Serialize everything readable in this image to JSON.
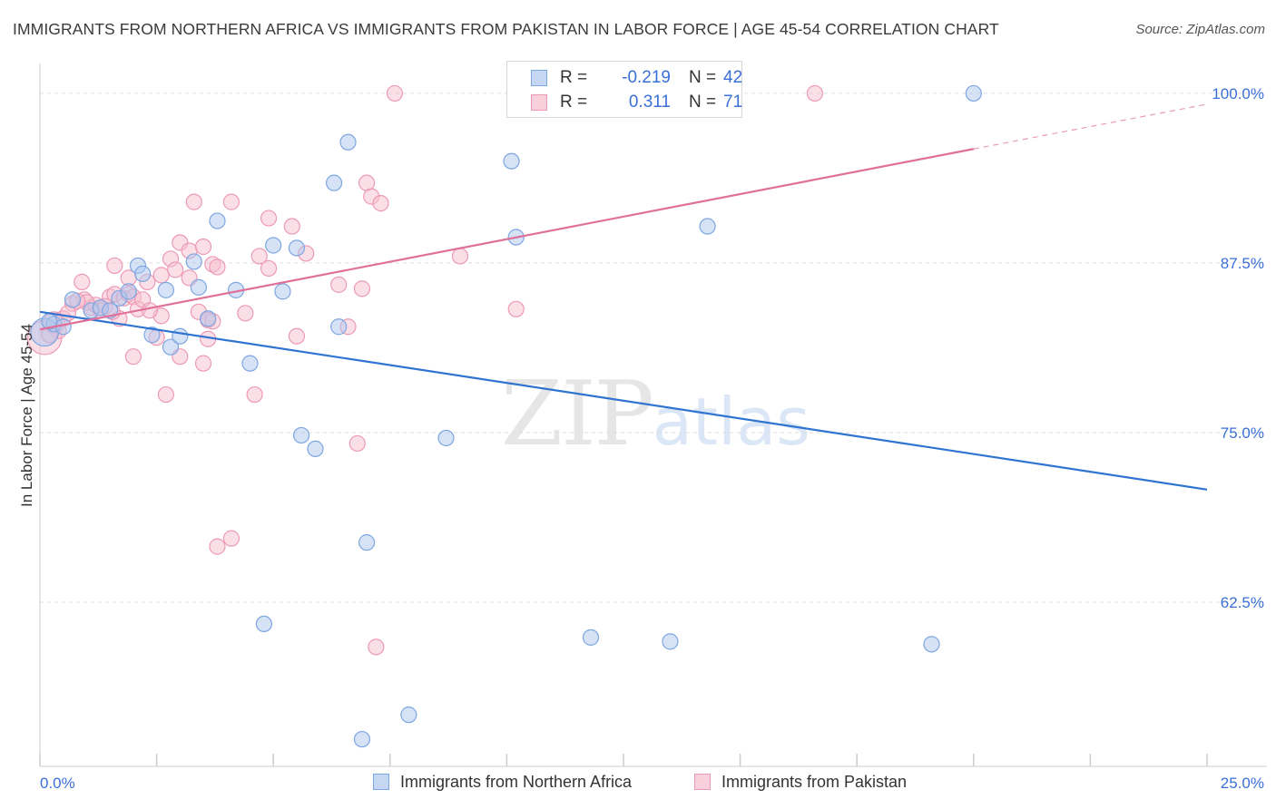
{
  "header": {
    "title": "IMMIGRANTS FROM NORTHERN AFRICA VS IMMIGRANTS FROM PAKISTAN IN LABOR FORCE | AGE 45-54 CORRELATION CHART",
    "source": "Source: ZipAtlas.com"
  },
  "watermark": {
    "zip": "ZIP",
    "atlas": "atlas"
  },
  "legend": {
    "r_label": "R =",
    "n_label": "N =",
    "series1": {
      "r": "-0.219",
      "n": "42"
    },
    "series2": {
      "r": "0.311",
      "n": "71"
    }
  },
  "colors": {
    "blue_fill": "#aec8f0",
    "blue_stroke": "#7ea6e0",
    "blue_line": "#2f74d0",
    "pink_fill": "#f6bfd0",
    "pink_stroke": "#ec9ab5",
    "pink_line": "#e0709a",
    "tick_text": "#3a6fd8",
    "grid": "#dddddd"
  },
  "chart_data": {
    "type": "scatter",
    "title": "IMMIGRANTS FROM NORTHERN AFRICA VS IMMIGRANTS FROM PAKISTAN IN LABOR FORCE | AGE 45-54 CORRELATION CHART",
    "xlabel": "",
    "ylabel": "In Labor Force | Age 45-54",
    "xlim": [
      0,
      25
    ],
    "ylim": [
      50.4,
      102.2
    ],
    "x_tick_labels": [
      "0.0%",
      "25.0%"
    ],
    "y_ticks": [
      62.5,
      75.0,
      87.5,
      100.0
    ],
    "y_tick_labels": [
      "62.5%",
      "75.0%",
      "87.5%",
      "100.0%"
    ],
    "grid": true,
    "legend_position": "top-center",
    "series": [
      {
        "name": "Immigrants from Northern Africa",
        "color": "blue",
        "r": -0.219,
        "n": 42,
        "trend": {
          "x": [
            0,
            25
          ],
          "y": [
            83.9,
            70.8
          ]
        },
        "points": [
          {
            "x": 0.1,
            "y": 82.4,
            "s": 1.8
          },
          {
            "x": 0.3,
            "y": 83.0,
            "s": 1
          },
          {
            "x": 0.5,
            "y": 82.8,
            "s": 1
          },
          {
            "x": 0.7,
            "y": 84.8,
            "s": 1
          },
          {
            "x": 1.1,
            "y": 84.0,
            "s": 1
          },
          {
            "x": 1.3,
            "y": 84.2,
            "s": 1
          },
          {
            "x": 1.5,
            "y": 84.0,
            "s": 1
          },
          {
            "x": 1.7,
            "y": 84.9,
            "s": 1
          },
          {
            "x": 1.9,
            "y": 85.4,
            "s": 1
          },
          {
            "x": 2.1,
            "y": 87.3,
            "s": 1
          },
          {
            "x": 2.2,
            "y": 86.7,
            "s": 1
          },
          {
            "x": 2.4,
            "y": 82.2,
            "s": 1
          },
          {
            "x": 2.7,
            "y": 85.5,
            "s": 1
          },
          {
            "x": 2.8,
            "y": 81.3,
            "s": 1
          },
          {
            "x": 3.0,
            "y": 82.1,
            "s": 1
          },
          {
            "x": 3.3,
            "y": 87.6,
            "s": 1
          },
          {
            "x": 3.4,
            "y": 85.7,
            "s": 1
          },
          {
            "x": 3.6,
            "y": 83.4,
            "s": 1
          },
          {
            "x": 3.8,
            "y": 90.6,
            "s": 1
          },
          {
            "x": 4.2,
            "y": 85.5,
            "s": 1
          },
          {
            "x": 4.5,
            "y": 80.1,
            "s": 1
          },
          {
            "x": 4.8,
            "y": 60.9,
            "s": 1
          },
          {
            "x": 5.0,
            "y": 88.8,
            "s": 1
          },
          {
            "x": 5.2,
            "y": 85.4,
            "s": 1
          },
          {
            "x": 5.5,
            "y": 88.6,
            "s": 1
          },
          {
            "x": 5.6,
            "y": 74.8,
            "s": 1
          },
          {
            "x": 5.9,
            "y": 73.8,
            "s": 1
          },
          {
            "x": 6.3,
            "y": 93.4,
            "s": 1
          },
          {
            "x": 6.4,
            "y": 82.8,
            "s": 1
          },
          {
            "x": 6.6,
            "y": 96.4,
            "s": 1
          },
          {
            "x": 6.9,
            "y": 52.4,
            "s": 1
          },
          {
            "x": 7.0,
            "y": 66.9,
            "s": 1
          },
          {
            "x": 7.9,
            "y": 54.2,
            "s": 1
          },
          {
            "x": 8.7,
            "y": 74.6,
            "s": 1
          },
          {
            "x": 10.1,
            "y": 95.0,
            "s": 1
          },
          {
            "x": 10.2,
            "y": 89.4,
            "s": 1
          },
          {
            "x": 11.8,
            "y": 59.9,
            "s": 1
          },
          {
            "x": 13.5,
            "y": 59.6,
            "s": 1
          },
          {
            "x": 14.3,
            "y": 90.2,
            "s": 1
          },
          {
            "x": 19.1,
            "y": 59.4,
            "s": 1
          },
          {
            "x": 20.0,
            "y": 100.0,
            "s": 1
          },
          {
            "x": 0.2,
            "y": 83.2,
            "s": 1
          }
        ]
      },
      {
        "name": "Immigrants from Pakistan",
        "color": "pink",
        "r": 0.311,
        "n": 71,
        "trend": {
          "x": [
            0,
            20
          ],
          "y": [
            82.6,
            95.9
          ]
        },
        "trend_ext": {
          "x": [
            20,
            25
          ],
          "y": [
            95.9,
            99.2
          ]
        },
        "points": [
          {
            "x": 0.1,
            "y": 82.0,
            "s": 2.2
          },
          {
            "x": 0.3,
            "y": 83.1,
            "s": 1.4
          },
          {
            "x": 0.4,
            "y": 82.5,
            "s": 1
          },
          {
            "x": 0.5,
            "y": 83.4,
            "s": 1
          },
          {
            "x": 0.7,
            "y": 84.5,
            "s": 1
          },
          {
            "x": 0.9,
            "y": 86.1,
            "s": 1
          },
          {
            "x": 0.95,
            "y": 84.8,
            "s": 1
          },
          {
            "x": 1.1,
            "y": 84.2,
            "s": 1
          },
          {
            "x": 1.2,
            "y": 84.4,
            "s": 1
          },
          {
            "x": 1.3,
            "y": 84.0,
            "s": 1
          },
          {
            "x": 1.5,
            "y": 85.0,
            "s": 1
          },
          {
            "x": 1.6,
            "y": 85.2,
            "s": 1
          },
          {
            "x": 1.7,
            "y": 83.4,
            "s": 1
          },
          {
            "x": 1.8,
            "y": 84.9,
            "s": 1
          },
          {
            "x": 1.6,
            "y": 87.3,
            "s": 1
          },
          {
            "x": 1.9,
            "y": 85.2,
            "s": 1
          },
          {
            "x": 1.9,
            "y": 86.4,
            "s": 1
          },
          {
            "x": 2.0,
            "y": 85.0,
            "s": 1
          },
          {
            "x": 2.1,
            "y": 84.1,
            "s": 1
          },
          {
            "x": 2.2,
            "y": 84.8,
            "s": 1
          },
          {
            "x": 2.0,
            "y": 80.6,
            "s": 1
          },
          {
            "x": 2.3,
            "y": 86.1,
            "s": 1
          },
          {
            "x": 2.5,
            "y": 82.0,
            "s": 1
          },
          {
            "x": 2.6,
            "y": 86.6,
            "s": 1
          },
          {
            "x": 2.6,
            "y": 83.6,
            "s": 1
          },
          {
            "x": 2.7,
            "y": 77.8,
            "s": 1
          },
          {
            "x": 2.8,
            "y": 87.8,
            "s": 1
          },
          {
            "x": 2.9,
            "y": 87.0,
            "s": 1
          },
          {
            "x": 3.0,
            "y": 80.6,
            "s": 1
          },
          {
            "x": 3.0,
            "y": 89.0,
            "s": 1
          },
          {
            "x": 3.2,
            "y": 86.4,
            "s": 1
          },
          {
            "x": 3.2,
            "y": 88.4,
            "s": 1
          },
          {
            "x": 3.3,
            "y": 92.0,
            "s": 1
          },
          {
            "x": 3.4,
            "y": 83.9,
            "s": 1
          },
          {
            "x": 3.5,
            "y": 88.7,
            "s": 1
          },
          {
            "x": 3.5,
            "y": 80.1,
            "s": 1
          },
          {
            "x": 3.6,
            "y": 81.9,
            "s": 1
          },
          {
            "x": 3.6,
            "y": 83.3,
            "s": 1
          },
          {
            "x": 3.7,
            "y": 87.4,
            "s": 1
          },
          {
            "x": 3.8,
            "y": 87.2,
            "s": 1
          },
          {
            "x": 3.7,
            "y": 83.2,
            "s": 1
          },
          {
            "x": 3.8,
            "y": 66.6,
            "s": 1
          },
          {
            "x": 4.1,
            "y": 67.2,
            "s": 1
          },
          {
            "x": 4.1,
            "y": 92.0,
            "s": 1
          },
          {
            "x": 4.4,
            "y": 83.8,
            "s": 1
          },
          {
            "x": 4.6,
            "y": 77.8,
            "s": 1
          },
          {
            "x": 4.7,
            "y": 88.0,
            "s": 1
          },
          {
            "x": 4.9,
            "y": 87.1,
            "s": 1
          },
          {
            "x": 4.9,
            "y": 90.8,
            "s": 1
          },
          {
            "x": 5.4,
            "y": 90.2,
            "s": 1
          },
          {
            "x": 5.5,
            "y": 82.1,
            "s": 1
          },
          {
            "x": 5.7,
            "y": 88.2,
            "s": 1
          },
          {
            "x": 6.4,
            "y": 85.9,
            "s": 1
          },
          {
            "x": 6.6,
            "y": 82.8,
            "s": 1
          },
          {
            "x": 6.8,
            "y": 74.2,
            "s": 1
          },
          {
            "x": 6.9,
            "y": 85.6,
            "s": 1
          },
          {
            "x": 7.0,
            "y": 93.4,
            "s": 1
          },
          {
            "x": 7.1,
            "y": 92.4,
            "s": 1
          },
          {
            "x": 7.2,
            "y": 59.2,
            "s": 1
          },
          {
            "x": 7.3,
            "y": 91.9,
            "s": 1
          },
          {
            "x": 7.6,
            "y": 100.0,
            "s": 1
          },
          {
            "x": 9.0,
            "y": 88.0,
            "s": 1
          },
          {
            "x": 10.2,
            "y": 84.1,
            "s": 1
          },
          {
            "x": 16.6,
            "y": 100.0,
            "s": 1
          },
          {
            "x": 0.6,
            "y": 83.8,
            "s": 1
          },
          {
            "x": 1.0,
            "y": 84.6,
            "s": 1
          },
          {
            "x": 1.4,
            "y": 84.3,
            "s": 1
          },
          {
            "x": 0.8,
            "y": 84.7,
            "s": 1
          },
          {
            "x": 1.55,
            "y": 83.9,
            "s": 1
          },
          {
            "x": 2.35,
            "y": 84.0,
            "s": 1
          },
          {
            "x": 0.2,
            "y": 82.2,
            "s": 1
          }
        ]
      }
    ]
  },
  "bottom_legend": {
    "series1": "Immigrants from Northern Africa",
    "series2": "Immigrants from Pakistan"
  }
}
